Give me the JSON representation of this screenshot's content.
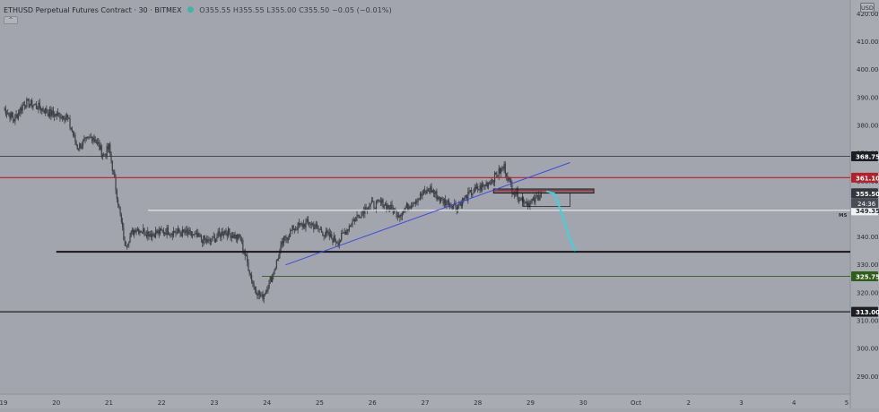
{
  "header": {
    "title": "ETHUSD Perpetual Futures Contract · 30 · BITMEX",
    "ohlc": "O355.55 H355.55 L355.00 C355.50 −0.05 (−0.01%)",
    "collapse_label": "^"
  },
  "currency": "USD",
  "colors": {
    "background": "#a3a5ae",
    "candles": "#3c3e45",
    "resistance_red": "#b0232b",
    "support_green": "#2f5d1a",
    "trend_blue": "#3f49d6",
    "projection_cyan": "#35d6e3",
    "white_line": "#f2f3f6"
  },
  "chart_data": {
    "type": "line",
    "title": "",
    "xlabel": "",
    "ylabel": "",
    "x_ticks": [
      "19",
      "20",
      "21",
      "22",
      "23",
      "24",
      "25",
      "26",
      "27",
      "28",
      "29",
      "30",
      "Oct",
      "2",
      "3",
      "4",
      "5"
    ],
    "y_ticks": [
      290,
      300,
      310,
      320,
      330,
      340,
      350,
      360,
      370,
      380,
      390,
      400,
      410,
      420
    ],
    "ylim": [
      283,
      423
    ],
    "grid": false,
    "series": [
      {
        "x": [
          19.0,
          19.2,
          19.4,
          19.6,
          19.9,
          20.2,
          20.4,
          20.7,
          20.9,
          21.0,
          21.15,
          21.3,
          21.5,
          21.8,
          22.1,
          22.5,
          22.9,
          23.2,
          23.5,
          23.75,
          23.9,
          24.1,
          24.3,
          24.5,
          24.8,
          25.1,
          25.35,
          25.6,
          25.9,
          26.2,
          26.5,
          26.8,
          27.1,
          27.3,
          27.6,
          27.9,
          28.1,
          28.3,
          28.5,
          28.65,
          28.8,
          28.95,
          29.05,
          29.2
        ],
        "y": [
          386,
          382,
          388,
          387,
          384,
          383,
          372,
          376,
          369,
          372,
          355,
          337,
          343,
          341,
          342,
          341,
          338,
          342,
          339,
          322,
          318,
          326,
          338,
          343,
          345,
          341,
          338,
          345,
          351,
          352,
          348,
          353,
          357,
          353,
          351,
          356,
          358,
          361,
          365,
          357,
          354,
          352,
          352.5,
          355.5
        ]
      }
    ],
    "horizontal_levels": [
      {
        "label": "368.75",
        "value": 368.75
      },
      {
        "label": "361.10",
        "value": 361.1
      },
      {
        "label": "355.50",
        "value": 355.5
      },
      {
        "label": "349.35",
        "value": 349.35
      },
      {
        "label": "325.75",
        "value": 325.75
      },
      {
        "label": "313.00",
        "value": 313.0
      }
    ],
    "support_zone": 334.5,
    "countdown_label": "24:36",
    "ms_label": "MS",
    "trendline": {
      "x": [
        24.35,
        29.75
      ],
      "y": [
        329.8,
        366.5
      ]
    },
    "projection": {
      "x": [
        29.3,
        29.45,
        29.6,
        29.75,
        29.85
      ],
      "y": [
        356.2,
        355.4,
        348,
        339,
        334.8
      ]
    }
  }
}
